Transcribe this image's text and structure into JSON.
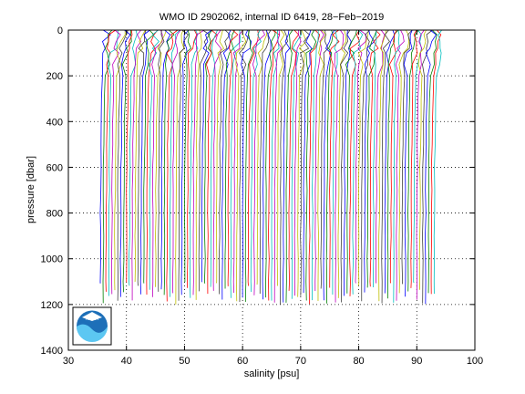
{
  "chart_data": {
    "type": "line",
    "title": "WMO ID 2902062, internal ID 6419, 28−Feb−2019",
    "xlabel": "salinity [psu]",
    "ylabel": "pressure [dbar]",
    "xlim": [
      30,
      100
    ],
    "ylim": [
      0,
      1400
    ],
    "y_reversed": true,
    "grid": true,
    "grid_style": "dotted",
    "xticks": [
      30,
      40,
      50,
      60,
      70,
      80,
      90,
      100
    ],
    "yticks": [
      0,
      200,
      400,
      600,
      800,
      1000,
      1200,
      1400
    ],
    "series_colors": [
      "#0000ff",
      "#008000",
      "#ff0000",
      "#00bfbf",
      "#bf00bf",
      "#bfbf00",
      "#404040"
    ],
    "profile_count": 116,
    "first_profile_offset": 35.5,
    "profile_offset_step": 0.5,
    "profile_shape": {
      "pressure": [
        0,
        20,
        50,
        80,
        100,
        150,
        200,
        300,
        400,
        500,
        600,
        700,
        800,
        900,
        1000,
        1100,
        1200
      ],
      "salinity_anomaly": [
        1.2,
        1.15,
        1.0,
        0.75,
        0.6,
        0.45,
        0.35,
        0.25,
        0.18,
        0.12,
        0.08,
        0.05,
        0.03,
        0.02,
        0.01,
        0.0,
        0.0
      ]
    },
    "logo": "noaa-logo"
  }
}
